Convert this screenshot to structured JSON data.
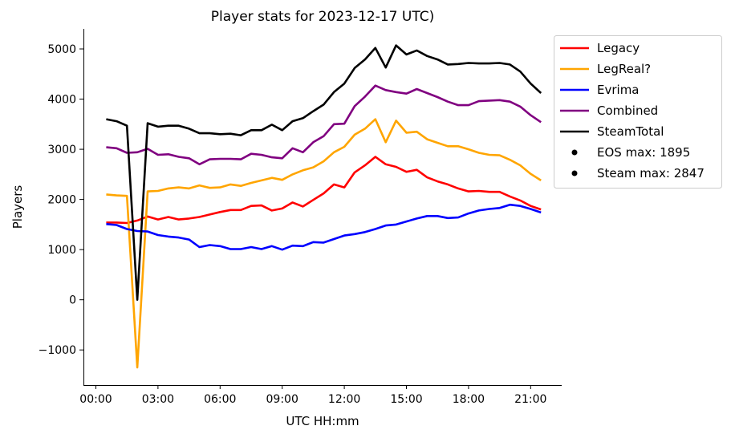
{
  "chart_data": {
    "type": "line",
    "title": "Player stats for 2023-12-17 UTC)",
    "xlabel": "UTC HH:mm",
    "ylabel": "Players",
    "x_unit": "hours",
    "xlim": [
      -0.6,
      22.5
    ],
    "ylim": [
      -1700,
      5400
    ],
    "x_ticks": [
      {
        "value": 0,
        "label": "00:00"
      },
      {
        "value": 3,
        "label": "03:00"
      },
      {
        "value": 6,
        "label": "06:00"
      },
      {
        "value": 9,
        "label": "09:00"
      },
      {
        "value": 12,
        "label": "12:00"
      },
      {
        "value": 15,
        "label": "15:00"
      },
      {
        "value": 18,
        "label": "18:00"
      },
      {
        "value": 21,
        "label": "21:00"
      }
    ],
    "y_ticks": [
      {
        "value": -1000,
        "label": "−1000"
      },
      {
        "value": 0,
        "label": "0"
      },
      {
        "value": 1000,
        "label": "1000"
      },
      {
        "value": 2000,
        "label": "2000"
      },
      {
        "value": 3000,
        "label": "3000"
      },
      {
        "value": 4000,
        "label": "4000"
      },
      {
        "value": 5000,
        "label": "5000"
      }
    ],
    "grid": false,
    "legend_position": "outside-right-top",
    "x": [
      0.5,
      1.0,
      1.5,
      2.0,
      2.5,
      3.0,
      3.5,
      4.0,
      4.5,
      5.0,
      5.5,
      6.0,
      6.5,
      7.0,
      7.5,
      8.0,
      8.5,
      9.0,
      9.5,
      10.0,
      10.5,
      11.0,
      11.5,
      12.0,
      12.5,
      13.0,
      13.5,
      14.0,
      14.5,
      15.0,
      15.5,
      16.0,
      16.5,
      17.0,
      17.5,
      18.0,
      18.5,
      19.0,
      19.5,
      20.0,
      20.5,
      21.0,
      21.5
    ],
    "series": [
      {
        "name": "Legacy",
        "color": "#ff0000",
        "values": [
          1540,
          1540,
          1530,
          1580,
          1660,
          1600,
          1650,
          1600,
          1620,
          1650,
          1700,
          1750,
          1790,
          1790,
          1870,
          1880,
          1780,
          1820,
          1940,
          1860,
          1990,
          2120,
          2300,
          2240,
          2540,
          2680,
          2850,
          2700,
          2650,
          2550,
          2590,
          2440,
          2360,
          2300,
          2220,
          2160,
          2170,
          2150,
          2150,
          2060,
          1980,
          1870,
          1800
        ]
      },
      {
        "name": "LegReal?",
        "color": "#ffa500",
        "values": [
          2100,
          2080,
          2070,
          -1350,
          2160,
          2170,
          2220,
          2240,
          2220,
          2280,
          2230,
          2240,
          2300,
          2270,
          2330,
          2380,
          2430,
          2390,
          2500,
          2580,
          2640,
          2760,
          2940,
          3050,
          3290,
          3410,
          3600,
          3140,
          3570,
          3330,
          3350,
          3200,
          3130,
          3060,
          3060,
          3000,
          2930,
          2890,
          2880,
          2790,
          2680,
          2510,
          2380
        ]
      },
      {
        "name": "Evrima",
        "color": "#0000ff",
        "values": [
          1510,
          1490,
          1410,
          1370,
          1360,
          1290,
          1260,
          1240,
          1200,
          1050,
          1090,
          1070,
          1010,
          1010,
          1050,
          1010,
          1070,
          1000,
          1080,
          1070,
          1150,
          1140,
          1210,
          1280,
          1310,
          1350,
          1410,
          1480,
          1500,
          1560,
          1620,
          1670,
          1670,
          1630,
          1640,
          1720,
          1780,
          1810,
          1830,
          1895,
          1870,
          1810,
          1740
        ]
      },
      {
        "name": "Combined",
        "color": "#800080",
        "values": [
          3040,
          3020,
          2930,
          2940,
          3010,
          2890,
          2900,
          2850,
          2820,
          2700,
          2800,
          2810,
          2810,
          2800,
          2910,
          2890,
          2840,
          2820,
          3020,
          2940,
          3140,
          3260,
          3500,
          3510,
          3860,
          4050,
          4270,
          4180,
          4140,
          4110,
          4200,
          4120,
          4040,
          3950,
          3880,
          3880,
          3960,
          3970,
          3980,
          3950,
          3850,
          3680,
          3540
        ]
      },
      {
        "name": "SteamTotal",
        "color": "#000000",
        "values": [
          3600,
          3560,
          3470,
          0,
          3520,
          3450,
          3470,
          3470,
          3410,
          3320,
          3320,
          3300,
          3310,
          3280,
          3380,
          3380,
          3490,
          3380,
          3560,
          3620,
          3760,
          3890,
          4140,
          4310,
          4620,
          4790,
          5020,
          4630,
          5070,
          4890,
          4970,
          4860,
          4790,
          4690,
          4700,
          4720,
          4710,
          4710,
          4720,
          4690,
          4550,
          4310,
          4120
        ]
      }
    ],
    "annotations": [
      {
        "label": "EOS max: 1895"
      },
      {
        "label": "Steam max: 2847"
      }
    ]
  }
}
